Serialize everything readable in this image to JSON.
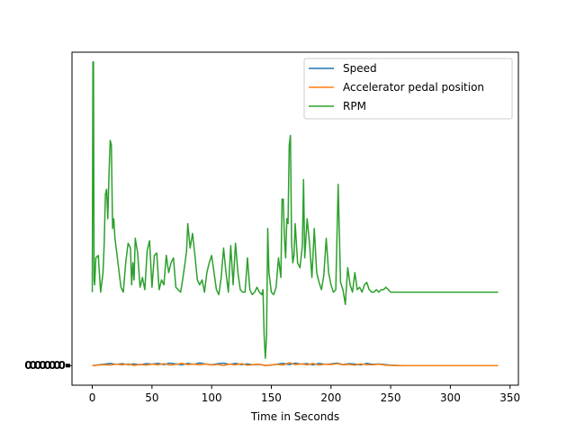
{
  "chart_data": {
    "type": "line",
    "xlabel": "Time in Seconds",
    "ylabel": "",
    "xlim": [
      -17,
      357
    ],
    "ylim": [
      -80,
      1280
    ],
    "xticks": [
      0,
      50,
      100,
      150,
      200,
      250,
      300,
      350
    ],
    "xtick_labels": [
      "0",
      "50",
      "100",
      "150",
      "200",
      "250",
      "300",
      "350"
    ],
    "ytick_label_text": "00000000",
    "grid": false,
    "legend_position": "top-right",
    "series": [
      {
        "name": "Speed",
        "color": "#1f77b4",
        "x": [
          0,
          10,
          15,
          20,
          25,
          30,
          35,
          40,
          45,
          50,
          55,
          60,
          65,
          70,
          75,
          80,
          85,
          90,
          95,
          100,
          105,
          110,
          115,
          120,
          125,
          130,
          135,
          140,
          145,
          150,
          155,
          160,
          165,
          170,
          175,
          180,
          185,
          190,
          195,
          200,
          205,
          210,
          215,
          220,
          225,
          230,
          235,
          240,
          245,
          250,
          255,
          260,
          300,
          340
        ],
        "values": [
          0,
          6,
          9,
          5,
          8,
          4,
          7,
          3,
          8,
          6,
          9,
          4,
          10,
          7,
          3,
          9,
          5,
          11,
          6,
          3,
          8,
          10,
          5,
          9,
          4,
          7,
          3,
          5,
          1,
          2,
          6,
          9,
          4,
          10,
          6,
          8,
          3,
          9,
          5,
          7,
          10,
          4,
          8,
          6,
          3,
          9,
          5,
          7,
          4,
          2,
          1,
          0,
          0,
          0
        ]
      },
      {
        "name": "Accelerator pedal position",
        "color": "#ff7f0e",
        "x": [
          0,
          10,
          15,
          20,
          25,
          30,
          35,
          40,
          45,
          50,
          55,
          60,
          65,
          70,
          75,
          80,
          85,
          90,
          95,
          100,
          105,
          110,
          115,
          120,
          125,
          130,
          135,
          140,
          145,
          150,
          155,
          160,
          165,
          170,
          175,
          180,
          185,
          190,
          195,
          200,
          205,
          210,
          215,
          220,
          225,
          230,
          235,
          240,
          245,
          250,
          255,
          260,
          300,
          340
        ],
        "values": [
          0,
          4,
          2,
          6,
          3,
          7,
          1,
          5,
          2,
          6,
          3,
          8,
          2,
          5,
          9,
          4,
          6,
          3,
          7,
          2,
          5,
          1,
          6,
          3,
          8,
          2,
          4,
          6,
          0,
          3,
          5,
          2,
          12,
          4,
          7,
          3,
          9,
          2,
          6,
          4,
          8,
          3,
          5,
          2,
          7,
          4,
          3,
          6,
          2,
          1,
          0,
          0,
          0,
          0
        ]
      },
      {
        "name": "RPM",
        "color": "#2ca02c",
        "x": [
          0,
          0.5,
          1,
          1.5,
          2,
          3,
          5,
          7,
          9,
          10,
          11,
          12,
          13,
          14,
          15,
          16,
          17,
          18,
          19,
          20,
          22,
          24,
          26,
          28,
          30,
          32,
          33,
          34,
          35,
          36,
          38,
          40,
          42,
          44,
          46,
          48,
          50,
          52,
          54,
          56,
          58,
          60,
          62,
          64,
          66,
          68,
          70,
          72,
          74,
          76,
          78,
          79,
          80,
          82,
          84,
          86,
          88,
          90,
          92,
          94,
          96,
          98,
          100,
          102,
          104,
          106,
          108,
          110,
          112,
          114,
          116,
          118,
          120,
          122,
          124,
          126,
          128,
          130,
          132,
          134,
          136,
          138,
          140,
          142,
          143,
          144,
          145,
          146,
          147,
          148,
          150,
          152,
          154,
          156,
          158,
          159,
          160,
          161,
          162,
          163,
          164,
          165,
          166,
          167,
          168,
          169,
          170,
          172,
          174,
          176,
          177,
          178,
          180,
          182,
          184,
          186,
          188,
          190,
          192,
          194,
          196,
          198,
          200,
          202,
          204,
          206,
          208,
          210,
          212,
          214,
          216,
          218,
          220,
          222,
          224,
          226,
          228,
          230,
          232,
          234,
          236,
          238,
          240,
          242,
          244,
          246,
          248,
          250,
          252,
          254,
          256,
          258,
          260,
          262,
          264,
          266,
          268,
          270,
          272,
          274,
          276,
          280,
          300,
          320,
          340
        ],
        "values": [
          300,
          1240,
          1240,
          350,
          330,
          440,
          450,
          300,
          380,
          500,
          700,
          720,
          600,
          780,
          920,
          900,
          560,
          600,
          520,
          480,
          400,
          320,
          300,
          420,
          500,
          480,
          330,
          420,
          350,
          520,
          460,
          320,
          360,
          310,
          470,
          510,
          320,
          450,
          460,
          310,
          350,
          330,
          450,
          380,
          420,
          440,
          320,
          310,
          300,
          360,
          430,
          470,
          580,
          480,
          540,
          450,
          350,
          330,
          350,
          300,
          380,
          420,
          450,
          380,
          310,
          290,
          360,
          480,
          380,
          300,
          490,
          330,
          500,
          380,
          310,
          300,
          300,
          440,
          310,
          290,
          300,
          320,
          300,
          290,
          310,
          120,
          30,
          120,
          560,
          380,
          300,
          290,
          320,
          440,
          360,
          680,
          680,
          520,
          440,
          600,
          580,
          900,
          940,
          500,
          420,
          450,
          580,
          420,
          400,
          490,
          760,
          440,
          600,
          500,
          360,
          560,
          380,
          340,
          310,
          370,
          520,
          380,
          330,
          300,
          310,
          740,
          340,
          310,
          250,
          400,
          330,
          300,
          380,
          310,
          320,
          300,
          330,
          340,
          310,
          300,
          300,
          310,
          300,
          310,
          310,
          320,
          310,
          300,
          300,
          300,
          300,
          300,
          300,
          300,
          300,
          300,
          300,
          300,
          300,
          300,
          300,
          300,
          300,
          300,
          300
        ]
      }
    ]
  }
}
